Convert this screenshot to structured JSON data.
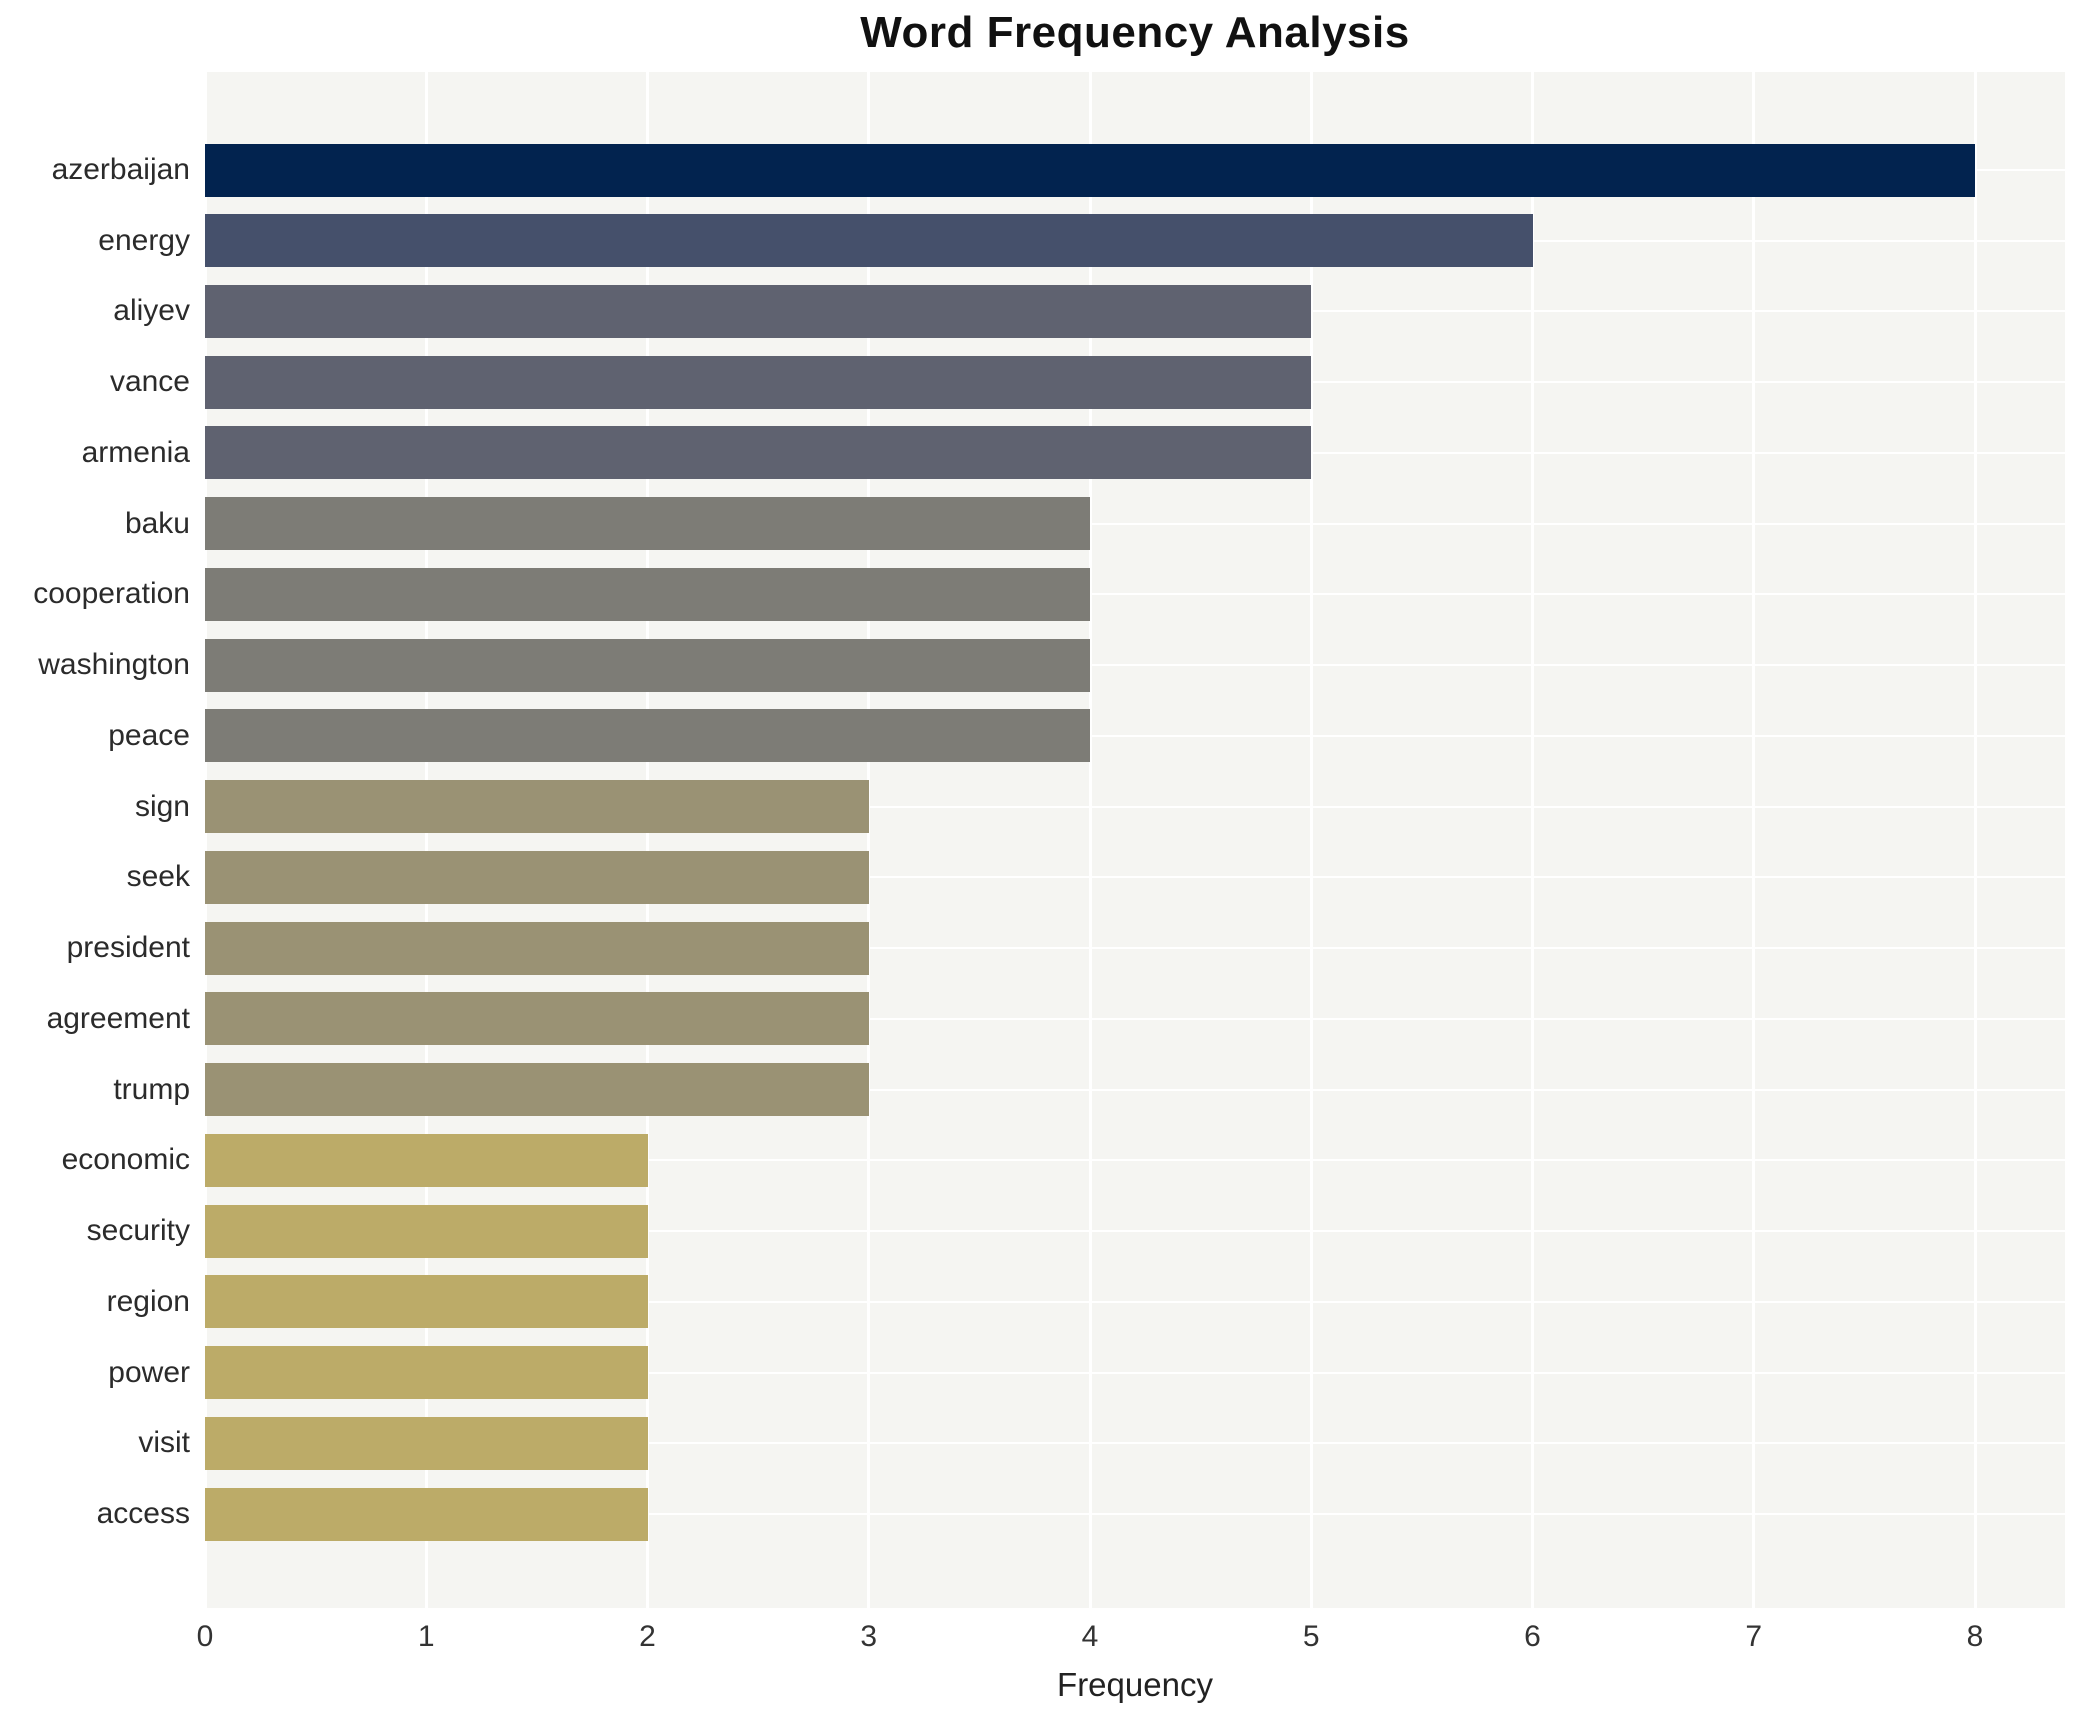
{
  "chart_data": {
    "type": "bar",
    "orientation": "horizontal",
    "title": "Word Frequency Analysis",
    "xlabel": "Frequency",
    "ylabel": "",
    "categories": [
      "azerbaijan",
      "energy",
      "aliyev",
      "vance",
      "armenia",
      "baku",
      "cooperation",
      "washington",
      "peace",
      "sign",
      "seek",
      "president",
      "agreement",
      "trump",
      "economic",
      "security",
      "region",
      "power",
      "visit",
      "access"
    ],
    "values": [
      8,
      6,
      5,
      5,
      5,
      4,
      4,
      4,
      4,
      3,
      3,
      3,
      3,
      3,
      2,
      2,
      2,
      2,
      2,
      2
    ],
    "bar_colors": [
      "#02234f",
      "#45506b",
      "#5f6270",
      "#5f6270",
      "#5f6270",
      "#7d7c76",
      "#7d7c76",
      "#7d7c76",
      "#7d7c76",
      "#9a9274",
      "#9a9274",
      "#9a9274",
      "#9a9274",
      "#9a9274",
      "#bcab68",
      "#bcab68",
      "#bcab68",
      "#bcab68",
      "#bcab68",
      "#bcab68"
    ],
    "xticks": [
      0,
      1,
      2,
      3,
      4,
      5,
      6,
      7,
      8
    ],
    "xlim": [
      0,
      8.4
    ],
    "grid": true,
    "grid_color": "#ffffff",
    "plot_background": "#f5f5f2",
    "figure_background": "#ffffff",
    "legend_position": "none"
  }
}
